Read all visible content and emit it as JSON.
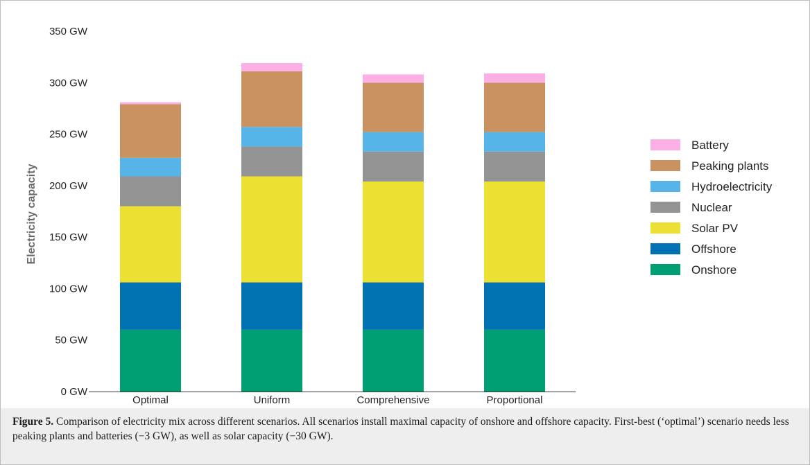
{
  "chart_data": {
    "type": "bar",
    "stacked": true,
    "categories": [
      "Optimal",
      "Uniform",
      "Comprehensive",
      "Proportional"
    ],
    "series": [
      {
        "name": "Onshore",
        "color": "#009e73",
        "values": [
          60,
          60,
          60,
          60
        ]
      },
      {
        "name": "Offshore",
        "color": "#0072b2",
        "values": [
          46,
          46,
          46,
          46
        ]
      },
      {
        "name": "Solar PV",
        "color": "#ece133",
        "values": [
          74,
          103,
          98,
          98
        ]
      },
      {
        "name": "Nuclear",
        "color": "#949494",
        "values": [
          29,
          29,
          29,
          29
        ]
      },
      {
        "name": "Hydroelectricity",
        "color": "#56b4e9",
        "values": [
          18,
          19,
          19,
          19
        ]
      },
      {
        "name": "Peaking plants",
        "color": "#ca9161",
        "values": [
          52,
          54,
          48,
          48
        ]
      },
      {
        "name": "Battery",
        "color": "#fbafe4",
        "values": [
          2,
          8,
          8,
          9
        ]
      }
    ],
    "ylabel": "Electricity capacity",
    "xlabel": "",
    "ylim": [
      0,
      350
    ],
    "yticks": [
      0,
      50,
      100,
      150,
      200,
      250,
      300,
      350
    ],
    "ytick_labels": [
      "0 GW",
      "50 GW",
      "100 GW",
      "150 GW",
      "200 GW",
      "250 GW",
      "300 GW",
      "350 GW"
    ],
    "legend_order": [
      "Battery",
      "Peaking plants",
      "Hydroelectricity",
      "Nuclear",
      "Solar PV",
      "Offshore",
      "Onshore"
    ],
    "legend_position": "right",
    "grid": false
  },
  "caption": {
    "label": "Figure 5.",
    "text": " Comparison of electricity mix across different scenarios. All scenarios install maximal capacity of onshore and offshore capacity. First-best (‘optimal’) scenario needs less peaking plants and batteries (−3 GW), as well as solar capacity (−30 GW)."
  }
}
